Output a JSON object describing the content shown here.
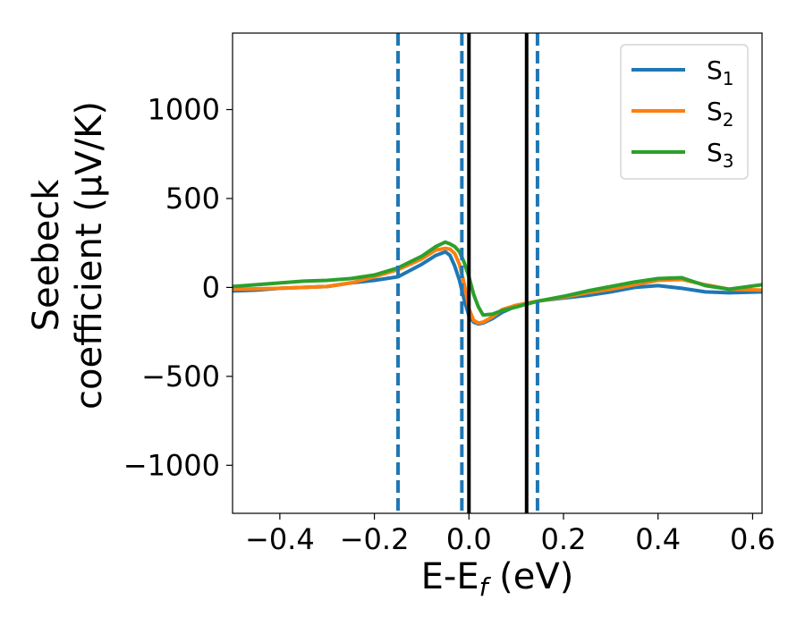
{
  "chart_data": {
    "type": "line",
    "xlabel": "E-E",
    "xlabel_sub": "f",
    "xlabel_unit": " (eV)",
    "ylabel_line1": "Seebeck",
    "ylabel_line2": "coefficient  (μV/K)",
    "xlim": [
      -0.5,
      0.62
    ],
    "ylim": [
      -1270,
      1430
    ],
    "xticks": [
      -0.4,
      -0.2,
      0.0,
      0.2,
      0.4,
      0.6
    ],
    "xtick_labels": [
      "−0.4",
      "−0.2",
      "0.0",
      "0.2",
      "0.4",
      "0.6"
    ],
    "yticks": [
      -1000,
      -500,
      0,
      500,
      1000
    ],
    "ytick_labels": [
      "−1000",
      "−500",
      "0",
      "500",
      "1000"
    ],
    "grid": false,
    "legend_position": "top-right",
    "vlines": [
      {
        "x": -0.15,
        "style": "dashed",
        "color": "#1f77b4"
      },
      {
        "x": -0.015,
        "style": "dashed",
        "color": "#1f77b4"
      },
      {
        "x": 0.145,
        "style": "dashed",
        "color": "#1f77b4"
      },
      {
        "x": 0.0,
        "style": "solid",
        "color": "#000000"
      },
      {
        "x": 0.122,
        "style": "solid",
        "color": "#000000"
      }
    ],
    "series": [
      {
        "name": "S",
        "sub": "1",
        "color": "#1f77b4",
        "x": [
          -0.5,
          -0.45,
          -0.4,
          -0.35,
          -0.3,
          -0.25,
          -0.2,
          -0.15,
          -0.1,
          -0.07,
          -0.05,
          -0.04,
          -0.03,
          -0.02,
          -0.01,
          0.0,
          0.01,
          0.02,
          0.03,
          0.05,
          0.07,
          0.1,
          0.12,
          0.15,
          0.2,
          0.25,
          0.3,
          0.35,
          0.4,
          0.45,
          0.5,
          0.55,
          0.62
        ],
        "y": [
          -20,
          -15,
          -5,
          0,
          5,
          25,
          40,
          60,
          130,
          180,
          200,
          180,
          120,
          40,
          -70,
          -160,
          -195,
          -205,
          -200,
          -175,
          -140,
          -105,
          -90,
          -75,
          -60,
          -45,
          -25,
          0,
          10,
          -5,
          -25,
          -30,
          -25
        ]
      },
      {
        "name": "S",
        "sub": "2",
        "color": "#ff7f0e",
        "x": [
          -0.5,
          -0.45,
          -0.4,
          -0.35,
          -0.3,
          -0.25,
          -0.2,
          -0.15,
          -0.1,
          -0.07,
          -0.05,
          -0.04,
          -0.03,
          -0.02,
          -0.01,
          0.0,
          0.01,
          0.02,
          0.03,
          0.05,
          0.07,
          0.1,
          0.12,
          0.15,
          0.2,
          0.25,
          0.3,
          0.35,
          0.4,
          0.45,
          0.5,
          0.55,
          0.62
        ],
        "y": [
          -10,
          -8,
          -5,
          0,
          5,
          25,
          60,
          100,
          160,
          210,
          220,
          215,
          190,
          130,
          20,
          -120,
          -185,
          -200,
          -195,
          -165,
          -125,
          -100,
          -90,
          -75,
          -55,
          -30,
          -10,
          15,
          40,
          45,
          15,
          -10,
          -15
        ]
      },
      {
        "name": "S",
        "sub": "3",
        "color": "#2ca02c",
        "x": [
          -0.5,
          -0.45,
          -0.4,
          -0.35,
          -0.3,
          -0.25,
          -0.2,
          -0.15,
          -0.1,
          -0.07,
          -0.05,
          -0.04,
          -0.03,
          -0.02,
          -0.01,
          0.0,
          0.01,
          0.02,
          0.03,
          0.05,
          0.07,
          0.1,
          0.12,
          0.15,
          0.2,
          0.25,
          0.3,
          0.35,
          0.4,
          0.45,
          0.5,
          0.55,
          0.62
        ],
        "y": [
          5,
          15,
          25,
          35,
          40,
          50,
          70,
          110,
          175,
          230,
          255,
          245,
          230,
          200,
          140,
          60,
          -40,
          -110,
          -155,
          -150,
          -130,
          -110,
          -95,
          -75,
          -50,
          -20,
          5,
          30,
          50,
          55,
          10,
          -10,
          15
        ]
      }
    ]
  }
}
